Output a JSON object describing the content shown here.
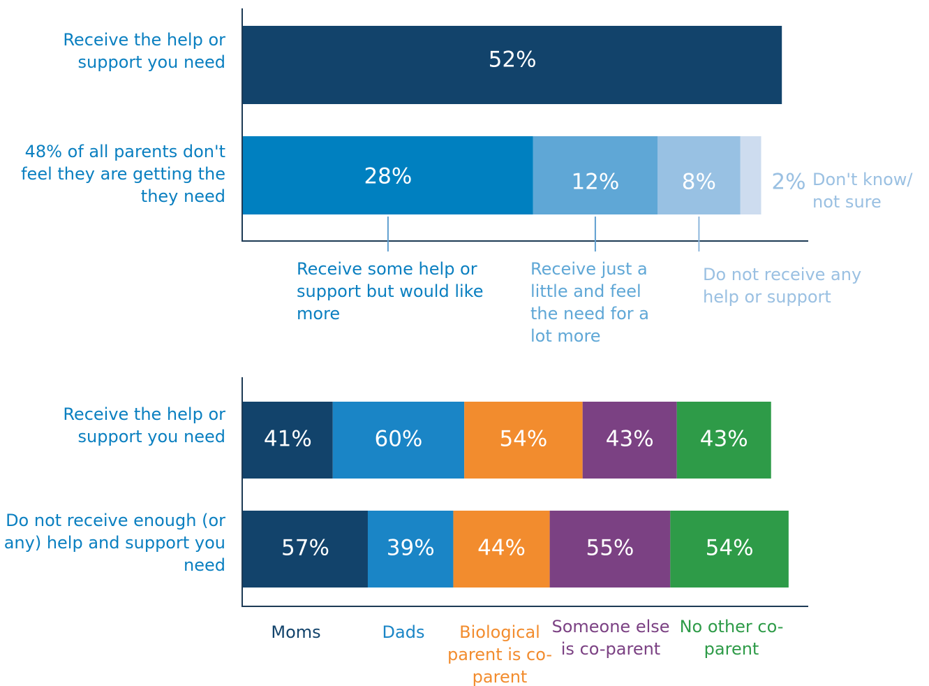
{
  "chart_data": [
    {
      "type": "bar",
      "orientation": "horizontal",
      "stacked": true,
      "categories": [
        "Receive the help or support you need",
        "48% of all parents don't feel they are getting the they need"
      ],
      "series": [
        {
          "color": "#12436b",
          "values": [
            52,
            null
          ],
          "value_labels": [
            "52%",
            null
          ]
        },
        {
          "name": "Receive some help or support but would like more",
          "color": "#0080c0",
          "values": [
            null,
            28
          ],
          "value_labels": [
            null,
            "28%"
          ]
        },
        {
          "name": "Receive just a little and feel the need for a lot more",
          "color": "#5fa7d6",
          "values": [
            null,
            12
          ],
          "value_labels": [
            null,
            "12%"
          ]
        },
        {
          "name": "Do not receive any help or support",
          "color": "#98c1e3",
          "values": [
            null,
            8
          ],
          "value_labels": [
            null,
            "8%"
          ]
        },
        {
          "name": "Don't know/ not sure",
          "color": "#cddcef",
          "values": [
            null,
            2
          ],
          "value_labels": [
            null,
            "2%"
          ]
        }
      ]
    },
    {
      "type": "bar",
      "orientation": "horizontal",
      "stacked": true,
      "categories": [
        "Receive the help or support you need",
        "Do not receive enough (or any) help and support you need"
      ],
      "series": [
        {
          "name": "Moms",
          "color": "#12436b",
          "values": [
            41,
            57
          ],
          "value_labels": [
            "41%",
            "57%"
          ]
        },
        {
          "name": "Dads",
          "color": "#1a85c6",
          "values": [
            60,
            39
          ],
          "value_labels": [
            "60%",
            "39%"
          ]
        },
        {
          "name": "Biological parent is co-parent",
          "color": "#f28c2e",
          "values": [
            54,
            44
          ],
          "value_labels": [
            "54%",
            "44%"
          ]
        },
        {
          "name": "Someone else is co-parent",
          "color": "#7b4183",
          "values": [
            43,
            55
          ],
          "value_labels": [
            "43%",
            "55%"
          ]
        },
        {
          "name": "No other co-parent",
          "color": "#2e9b48",
          "values": [
            43,
            54
          ],
          "value_labels": [
            "43%",
            "54%"
          ]
        }
      ]
    }
  ]
}
